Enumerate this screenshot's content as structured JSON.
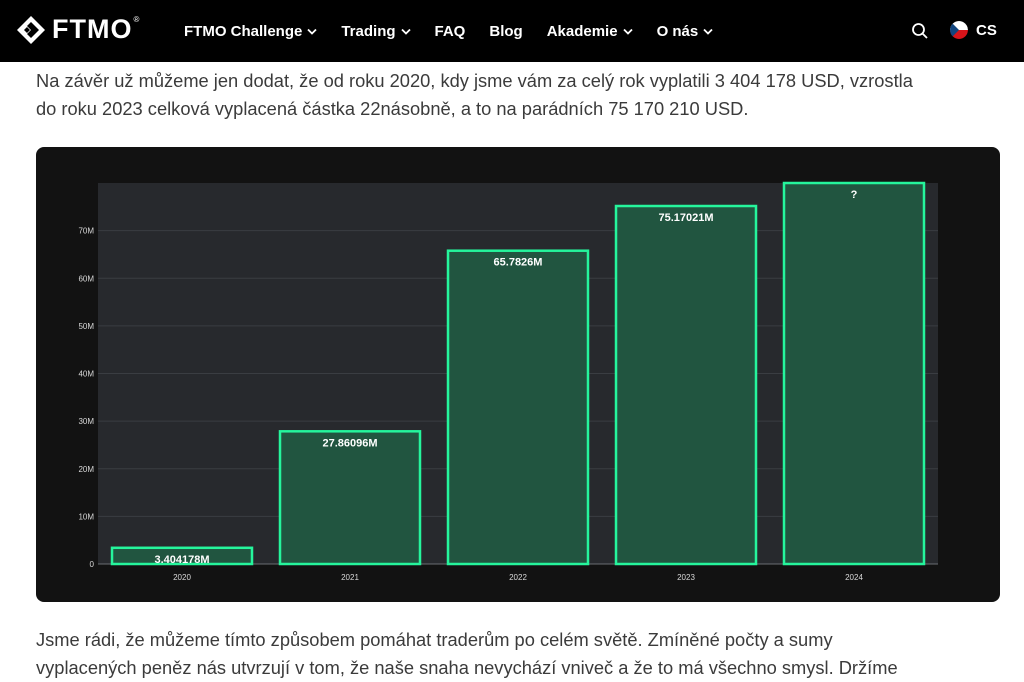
{
  "nav": {
    "brand": "FTMO",
    "brand_mark": "®",
    "items": [
      {
        "label": "FTMO Challenge",
        "dropdown": true
      },
      {
        "label": "Trading",
        "dropdown": true
      },
      {
        "label": "FAQ",
        "dropdown": false
      },
      {
        "label": "Blog",
        "dropdown": false
      },
      {
        "label": "Akademie",
        "dropdown": true
      },
      {
        "label": "O nás",
        "dropdown": true
      }
    ],
    "search_icon": "search-icon",
    "language": "CS",
    "flag_icon": "czech-flag-icon"
  },
  "article": {
    "para1_lines": [
      "Na závěr už můžeme jen dodat, že od roku 2020, kdy jsme vám za celý rok vyplatili 3 404 178 USD, vzrostla",
      "do roku 2023 celková vyplacená částka 22násobně, a to na parádních 75 170 210 USD."
    ],
    "para2_lines": [
      "Jsme rádi, že můžeme tímto způsobem pomáhat traderům po celém světě. Zmíněné počty a sumy",
      "vyplacených peněz nás utvrzují v tom, že naše snaha nevychází vniveč a že to má všechno smysl. Držíme"
    ]
  },
  "colors": {
    "nav_bg": "#000000",
    "card_bg": "#121212",
    "plot_bg": "#27292d",
    "bar_fill": "#215540",
    "bar_stroke": "#25f59c",
    "text": "#3b3b3b"
  },
  "chart_data": {
    "type": "bar",
    "categories": [
      "2020",
      "2021",
      "2022",
      "2023",
      "2024"
    ],
    "values": [
      3.404178,
      27.86096,
      65.7826,
      75.17021,
      80
    ],
    "labels": [
      "3.404178M",
      "27.86096M",
      "65.7826M",
      "75.17021M",
      "?"
    ],
    "unit": "M",
    "yticks": [
      "0",
      "10M",
      "20M",
      "30M",
      "40M",
      "50M",
      "60M",
      "70M"
    ],
    "ytick_values": [
      0,
      10,
      20,
      30,
      40,
      50,
      60,
      70
    ],
    "ylim": [
      0,
      80
    ],
    "grid": true,
    "title": "",
    "xlabel": "",
    "ylabel": ""
  }
}
